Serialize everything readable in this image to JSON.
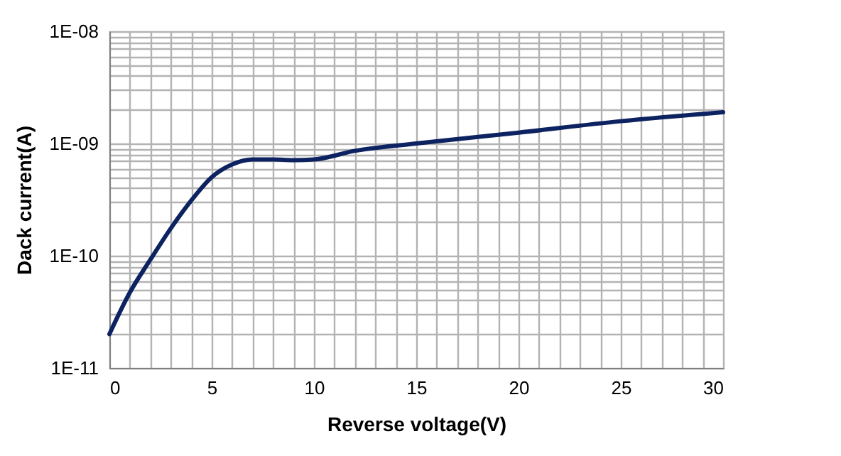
{
  "chart_data": {
    "type": "line",
    "xlabel": "Reverse voltage(V)",
    "ylabel": "Dack current(A)",
    "x": [
      0,
      1,
      2,
      3,
      4,
      5,
      6,
      7,
      8,
      9,
      10,
      12,
      15,
      20,
      25,
      30
    ],
    "series": [
      {
        "color": "#0d2260",
        "values": [
          2e-11,
          4.7e-11,
          9.2e-11,
          1.75e-10,
          3.1e-10,
          5e-10,
          6.5e-10,
          7.2e-10,
          7.2e-10,
          7.1e-10,
          7.2e-10,
          8.6e-10,
          1e-09,
          1.25e-09,
          1.58e-09,
          1.9e-09
        ]
      }
    ],
    "log": "y",
    "grid": true,
    "marker": "none",
    "line_style": "solid",
    "xlim": [
      0,
      30
    ],
    "ylim": [
      1e-11,
      1e-08
    ],
    "xticks": [
      0,
      {
        "value": 1,
        "label": null
      },
      {
        "value": 2,
        "label": null
      },
      {
        "value": 3,
        "label": null
      },
      {
        "value": 4,
        "label": null
      },
      5,
      {
        "value": 6,
        "label": null
      },
      {
        "value": 7,
        "label": null
      },
      {
        "value": 8,
        "label": null
      },
      {
        "value": 9,
        "label": null
      },
      10,
      {
        "value": 11,
        "label": null
      },
      {
        "value": 12,
        "label": null
      },
      {
        "value": 13,
        "label": null
      },
      {
        "value": 14,
        "label": null
      },
      15,
      {
        "value": 16,
        "label": null
      },
      {
        "value": 17,
        "label": null
      },
      {
        "value": 18,
        "label": null
      },
      {
        "value": 19,
        "label": null
      },
      20,
      {
        "value": 21,
        "label": null
      },
      {
        "value": 22,
        "label": null
      },
      {
        "value": 23,
        "label": null
      },
      {
        "value": 24,
        "label": null
      },
      25,
      {
        "value": 26,
        "label": null
      },
      {
        "value": 27,
        "label": null
      },
      {
        "value": 28,
        "label": null
      },
      {
        "value": 29,
        "label": null
      },
      30
    ],
    "yticks": [
      {
        "value": 1e-11,
        "label": "1E-11"
      },
      {
        "value": 2e-11,
        "label": null
      },
      {
        "value": 3e-11,
        "label": null
      },
      {
        "value": 4e-11,
        "label": null
      },
      {
        "value": 5e-11,
        "label": null
      },
      {
        "value": 6e-11,
        "label": null
      },
      {
        "value": 7e-11,
        "label": null
      },
      {
        "value": 8e-11,
        "label": null
      },
      {
        "value": 9e-11,
        "label": null
      },
      {
        "value": 1e-10,
        "label": "1E-10"
      },
      {
        "value": 2e-10,
        "label": null
      },
      {
        "value": 3e-10,
        "label": null
      },
      {
        "value": 4e-10,
        "label": null
      },
      {
        "value": 5e-10,
        "label": null
      },
      {
        "value": 6e-10,
        "label": null
      },
      {
        "value": 7e-10,
        "label": null
      },
      {
        "value": 8e-10,
        "label": null
      },
      {
        "value": 9e-10,
        "label": null
      },
      {
        "value": 1e-09,
        "label": "1E-09"
      },
      {
        "value": 2e-09,
        "label": null
      },
      {
        "value": 3e-09,
        "label": null
      },
      {
        "value": 4e-09,
        "label": null
      },
      {
        "value": 5e-09,
        "label": null
      },
      {
        "value": 6e-09,
        "label": null
      },
      {
        "value": 7e-09,
        "label": null
      },
      {
        "value": 8e-09,
        "label": null
      },
      {
        "value": 9e-09,
        "label": null
      },
      {
        "value": 1e-08,
        "label": "1E-08"
      }
    ]
  }
}
